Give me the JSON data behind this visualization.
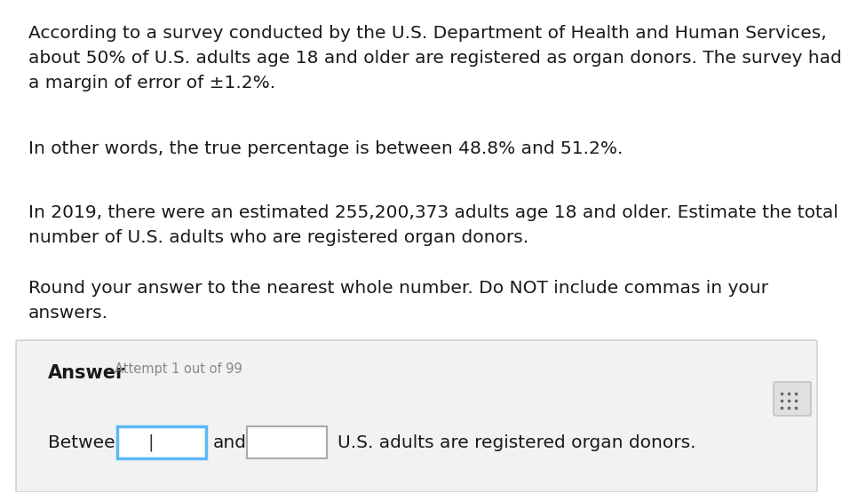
{
  "bg_color": "#ffffff",
  "paragraph1": "According to a survey conducted by the U.S. Department of Health and Human Services,\nabout 50% of U.S. adults age 18 and older are registered as organ donors. The survey had\na margin of error of ±1.2%.",
  "paragraph2": "In other words, the true percentage is between 48.8% and 51.2%.",
  "paragraph3": "In 2019, there were an estimated 255,200,373 adults age 18 and older. Estimate the total\nnumber of U.S. adults who are registered organ donors.",
  "paragraph4": "Round your answer to the nearest whole number. Do NOT include commas in your\nanswers.",
  "answer_label": "Answer",
  "attempt_label": "Attempt 1 out of 99",
  "between_label": "Between",
  "and_label": "and",
  "suffix_label": "U.S. adults are registered organ donors.",
  "text_color": "#1a1a1a",
  "font_size_main": 14.5,
  "font_size_answer_bold": 15,
  "font_size_attempt": 10.5,
  "input_border_color1": "#5bb8f5",
  "input_border_color2": "#aaaaaa",
  "answer_bg": "#f2f2f2",
  "answer_border": "#cccccc",
  "calc_bg": "#e0e0e0",
  "calc_border": "#bbbbbb"
}
